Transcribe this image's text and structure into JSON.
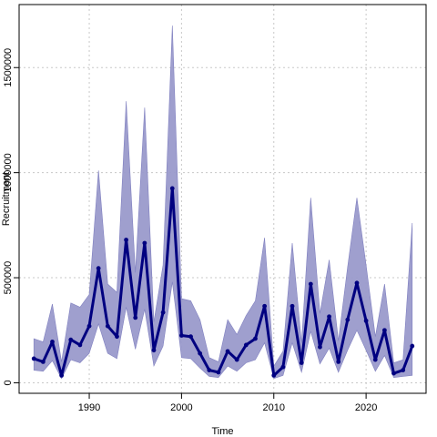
{
  "chart_data": {
    "type": "line",
    "title": "",
    "xlabel": "Time",
    "ylabel": "Recruitment",
    "xlim": [
      1982.4,
      2026.5
    ],
    "ylim": [
      -50000,
      1800000
    ],
    "xticks": [
      1990,
      2000,
      2010,
      2020
    ],
    "yticks": [
      0,
      500000,
      1000000,
      1500000
    ],
    "ytick_labels": [
      "0",
      "500000",
      "1000000",
      "1500000"
    ],
    "grid": true,
    "colors": {
      "line": "#000080",
      "band": "#9a9acb",
      "band_stroke": "#8080c0",
      "grid": "#c8c8c8"
    },
    "series": [
      {
        "type": "median",
        "x": [
          1984,
          1985,
          1986,
          1987,
          1988,
          1989,
          1990,
          1991,
          1992,
          1993,
          1994,
          1995,
          1996,
          1997,
          1998,
          1999,
          2000,
          2001,
          2002,
          2003,
          2004,
          2005,
          2006,
          2007,
          2008,
          2009,
          2010,
          2011,
          2012,
          2013,
          2014,
          2015,
          2016,
          2017,
          2018,
          2019,
          2020,
          2021,
          2022,
          2023,
          2024,
          2025
        ],
        "values": [
          115000,
          100000,
          195000,
          35000,
          205000,
          180000,
          270000,
          545000,
          270000,
          220000,
          680000,
          310000,
          665000,
          155000,
          335000,
          925000,
          225000,
          220000,
          140000,
          60000,
          50000,
          150000,
          110000,
          180000,
          210000,
          365000,
          35000,
          75000,
          365000,
          95000,
          470000,
          170000,
          315000,
          100000,
          300000,
          475000,
          295000,
          110000,
          250000,
          45000,
          60000,
          175000
        ]
      },
      {
        "type": "upper",
        "x": [
          1984,
          1985,
          1986,
          1987,
          1988,
          1989,
          1990,
          1991,
          1992,
          1993,
          1994,
          1995,
          1996,
          1997,
          1998,
          1999,
          2000,
          2001,
          2002,
          2003,
          2004,
          2005,
          2006,
          2007,
          2008,
          2009,
          2010,
          2011,
          2012,
          2013,
          2014,
          2015,
          2016,
          2017,
          2018,
          2019,
          2020,
          2021,
          2022,
          2023,
          2024,
          2025
        ],
        "values": [
          210000,
          195000,
          375000,
          100000,
          380000,
          360000,
          420000,
          1010000,
          470000,
          430000,
          1340000,
          525000,
          1310000,
          290000,
          560000,
          1700000,
          400000,
          390000,
          300000,
          120000,
          100000,
          300000,
          230000,
          320000,
          390000,
          690000,
          80000,
          150000,
          665000,
          190000,
          880000,
          330000,
          585000,
          200000,
          550000,
          880000,
          560000,
          220000,
          470000,
          95000,
          110000,
          760000
        ]
      },
      {
        "type": "lower",
        "x": [
          1984,
          1985,
          1986,
          1987,
          1988,
          1989,
          1990,
          1991,
          1992,
          1993,
          1994,
          1995,
          1996,
          1997,
          1998,
          1999,
          2000,
          2001,
          2002,
          2003,
          2004,
          2005,
          2006,
          2007,
          2008,
          2009,
          2010,
          2011,
          2012,
          2013,
          2014,
          2015,
          2016,
          2017,
          2018,
          2019,
          2020,
          2021,
          2022,
          2023,
          2024,
          2025
        ],
        "values": [
          60000,
          55000,
          105000,
          20000,
          110000,
          95000,
          140000,
          280000,
          140000,
          115000,
          360000,
          160000,
          350000,
          80000,
          175000,
          480000,
          120000,
          115000,
          70000,
          30000,
          25000,
          80000,
          55000,
          95000,
          110000,
          190000,
          20000,
          35000,
          190000,
          50000,
          245000,
          90000,
          165000,
          50000,
          155000,
          250000,
          155000,
          55000,
          130000,
          25000,
          30000,
          35000
        ]
      }
    ]
  }
}
